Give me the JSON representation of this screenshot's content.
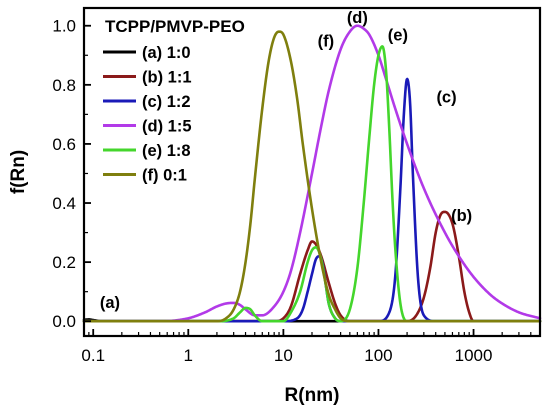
{
  "chart_data": {
    "type": "line",
    "xlabel": "R(nm)",
    "ylabel": "f(Rn)",
    "xscale": "log",
    "xlim": [
      0.08,
      5000
    ],
    "ylim": [
      -0.05,
      1.06
    ],
    "x_ticks": [
      0.1,
      1,
      10,
      100,
      1000
    ],
    "x_tick_labels": [
      "0.1",
      "1",
      "10",
      "100",
      "1000"
    ],
    "y_ticks": [
      0.0,
      0.2,
      0.4,
      0.6,
      0.8,
      1.0
    ],
    "y_tick_labels": [
      "0.0",
      "0.2",
      "0.4",
      "0.6",
      "0.8",
      "1.0"
    ],
    "grid": false,
    "legend_title": "TCPP/PMVP-PEO",
    "legend_position": "top-left",
    "series": [
      {
        "name": "(a) 1:0",
        "color": "#000000",
        "x": [
          0.08,
          0.09,
          0.1,
          0.11,
          0.12,
          0.15,
          0.2,
          0.5,
          1,
          10,
          100,
          1000,
          5000
        ],
        "y": [
          0.005,
          0.006,
          0.004,
          0.002,
          0.0,
          0.0,
          0.0,
          0.0,
          0.0,
          0.0,
          0.0,
          0.0,
          0.0
        ]
      },
      {
        "name": "(b) 1:1",
        "color": "#8b1a1a",
        "x": [
          0.08,
          5,
          8,
          10,
          12,
          15,
          18,
          20,
          22,
          25,
          30,
          35,
          40,
          50,
          100,
          200,
          250,
          300,
          350,
          400,
          450,
          500,
          600,
          700,
          800,
          900,
          1000,
          5000
        ],
        "y": [
          0.0,
          0.0,
          0.0,
          0.01,
          0.05,
          0.16,
          0.24,
          0.27,
          0.26,
          0.22,
          0.13,
          0.06,
          0.02,
          0.0,
          0.0,
          0.0,
          0.02,
          0.08,
          0.18,
          0.3,
          0.36,
          0.37,
          0.33,
          0.22,
          0.1,
          0.03,
          0.0,
          0.0
        ]
      },
      {
        "name": "(c) 1:2",
        "color": "#1a1ab8",
        "x": [
          0.08,
          10,
          14,
          16,
          18,
          20,
          22,
          24,
          26,
          28,
          30,
          35,
          40,
          100,
          130,
          150,
          170,
          185,
          200,
          215,
          230,
          260,
          300,
          400,
          5000
        ],
        "y": [
          0.0,
          0.0,
          0.01,
          0.04,
          0.1,
          0.16,
          0.21,
          0.22,
          0.19,
          0.12,
          0.06,
          0.01,
          0.0,
          0.0,
          0.03,
          0.15,
          0.45,
          0.7,
          0.82,
          0.74,
          0.5,
          0.15,
          0.02,
          0.0,
          0.0
        ]
      },
      {
        "name": "(d) 1:5",
        "color": "#b23ae8",
        "x": [
          0.08,
          0.5,
          1,
          1.5,
          2,
          2.5,
          3,
          3.5,
          4,
          5,
          6,
          8,
          10,
          12,
          15,
          20,
          25,
          30,
          40,
          50,
          60,
          70,
          80,
          100,
          120,
          150,
          200,
          300,
          500,
          700,
          1000,
          1500,
          2000,
          3000,
          5000
        ],
        "y": [
          0.0,
          0.0,
          0.01,
          0.03,
          0.05,
          0.06,
          0.062,
          0.055,
          0.04,
          0.02,
          0.02,
          0.05,
          0.1,
          0.17,
          0.3,
          0.5,
          0.66,
          0.78,
          0.92,
          0.98,
          1.0,
          0.99,
          0.97,
          0.9,
          0.82,
          0.72,
          0.6,
          0.45,
          0.3,
          0.22,
          0.15,
          0.09,
          0.06,
          0.03,
          0.01
        ]
      },
      {
        "name": "(e) 1:8",
        "color": "#44d62c",
        "x": [
          0.08,
          2,
          3,
          3.5,
          4,
          4.5,
          5,
          6,
          8,
          10,
          12,
          15,
          18,
          20,
          22,
          25,
          28,
          30,
          35,
          40,
          50,
          60,
          70,
          80,
          90,
          100,
          110,
          120,
          130,
          140,
          150,
          170,
          200,
          5000
        ],
        "y": [
          0.0,
          0.0,
          0.01,
          0.03,
          0.045,
          0.04,
          0.02,
          0.0,
          0.0,
          0.0,
          0.03,
          0.1,
          0.2,
          0.24,
          0.25,
          0.21,
          0.12,
          0.06,
          0.01,
          0.0,
          0.04,
          0.18,
          0.4,
          0.62,
          0.8,
          0.9,
          0.93,
          0.85,
          0.65,
          0.42,
          0.25,
          0.06,
          0.0,
          0.0
        ]
      },
      {
        "name": "(f)  0:1",
        "color": "#7f7f0e",
        "x": [
          0.08,
          1,
          2,
          2.5,
          3,
          3.5,
          4,
          4.5,
          5,
          6,
          7,
          8,
          9,
          10,
          12,
          14,
          16,
          20,
          25,
          30,
          35,
          40,
          50,
          5000
        ],
        "y": [
          0.0,
          0.0,
          0.0,
          0.01,
          0.04,
          0.1,
          0.2,
          0.33,
          0.48,
          0.72,
          0.88,
          0.96,
          0.98,
          0.97,
          0.88,
          0.75,
          0.6,
          0.38,
          0.2,
          0.09,
          0.04,
          0.01,
          0.0,
          0.0
        ]
      }
    ],
    "annotations": [
      {
        "text": "(a)",
        "x": 0.15,
        "y": 0.045
      },
      {
        "text": "(b)",
        "x": 750,
        "y": 0.34
      },
      {
        "text": "(c)",
        "x": 520,
        "y": 0.74
      },
      {
        "text": "(d)",
        "x": 60,
        "y": 1.01
      },
      {
        "text": "(e)",
        "x": 160,
        "y": 0.95
      },
      {
        "text": "(f)",
        "x": 28,
        "y": 0.93
      }
    ]
  }
}
